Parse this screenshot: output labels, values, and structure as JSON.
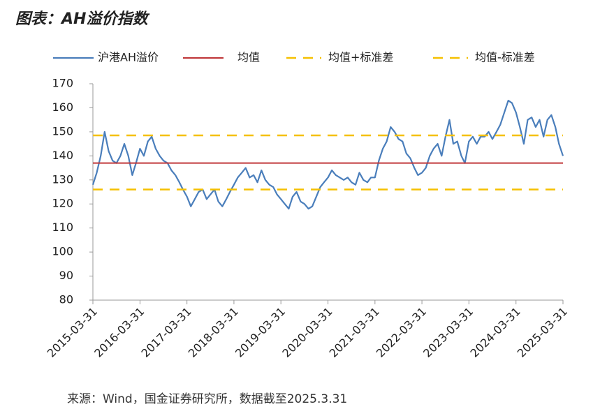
{
  "chart_data": {
    "type": "line",
    "title": "图表：AH溢价指数",
    "source": "来源：Wind，国金证券研究所，数据截至2025.3.31",
    "x": [
      "2015-03-31",
      "2015-04-30",
      "2015-05-31",
      "2015-06-30",
      "2015-07-31",
      "2015-08-31",
      "2015-09-30",
      "2015-10-31",
      "2015-11-30",
      "2015-12-31",
      "2016-01-31",
      "2016-02-29",
      "2016-03-31",
      "2016-04-30",
      "2016-05-31",
      "2016-06-30",
      "2016-07-31",
      "2016-08-31",
      "2016-09-30",
      "2016-10-31",
      "2016-11-30",
      "2016-12-31",
      "2017-01-31",
      "2017-02-28",
      "2017-03-31",
      "2017-04-30",
      "2017-05-31",
      "2017-06-30",
      "2017-07-31",
      "2017-08-31",
      "2017-09-30",
      "2017-10-31",
      "2017-11-30",
      "2017-12-31",
      "2018-01-31",
      "2018-02-28",
      "2018-03-31",
      "2018-04-30",
      "2018-05-31",
      "2018-06-30",
      "2018-07-31",
      "2018-08-31",
      "2018-09-30",
      "2018-10-31",
      "2018-11-30",
      "2018-12-31",
      "2019-01-31",
      "2019-02-28",
      "2019-03-31",
      "2019-04-30",
      "2019-05-31",
      "2019-06-30",
      "2019-07-31",
      "2019-08-31",
      "2019-09-30",
      "2019-10-31",
      "2019-11-30",
      "2019-12-31",
      "2020-01-31",
      "2020-02-29",
      "2020-03-31",
      "2020-04-30",
      "2020-05-31",
      "2020-06-30",
      "2020-07-31",
      "2020-08-31",
      "2020-09-30",
      "2020-10-31",
      "2020-11-30",
      "2020-12-31",
      "2021-01-31",
      "2021-02-28",
      "2021-03-31",
      "2021-04-30",
      "2021-05-31",
      "2021-06-30",
      "2021-07-31",
      "2021-08-31",
      "2021-09-30",
      "2021-10-31",
      "2021-11-30",
      "2021-12-31",
      "2022-01-31",
      "2022-02-28",
      "2022-03-31",
      "2022-04-30",
      "2022-05-31",
      "2022-06-30",
      "2022-07-31",
      "2022-08-31",
      "2022-09-30",
      "2022-10-31",
      "2022-11-30",
      "2022-12-31",
      "2023-01-31",
      "2023-02-28",
      "2023-03-31",
      "2023-04-30",
      "2023-05-31",
      "2023-06-30",
      "2023-07-31",
      "2023-08-31",
      "2023-09-30",
      "2023-10-31",
      "2023-11-30",
      "2023-12-31",
      "2024-01-31",
      "2024-02-29",
      "2024-03-31",
      "2024-04-30",
      "2024-05-31",
      "2024-06-30",
      "2024-07-31",
      "2024-08-31",
      "2024-09-30",
      "2024-10-31",
      "2024-11-30",
      "2024-12-31",
      "2025-01-31",
      "2025-02-28",
      "2025-03-31"
    ],
    "series": [
      {
        "name": "沪港AH溢价",
        "color": "#4a7ebb",
        "style": "solid",
        "values": [
          128,
          133,
          140,
          150,
          142,
          138,
          137,
          140,
          145,
          140,
          132,
          137,
          143,
          140,
          146,
          148,
          143,
          140,
          138,
          137,
          134,
          132,
          129,
          126,
          123,
          119,
          122,
          125,
          126,
          122,
          124,
          126,
          121,
          119,
          122,
          125,
          128,
          131,
          133,
          135,
          131,
          132,
          129,
          134,
          130,
          128,
          127,
          124,
          122,
          120,
          118,
          123,
          125,
          121,
          120,
          118,
          119,
          123,
          127,
          129,
          131,
          134,
          132,
          131,
          130,
          131,
          129,
          128,
          133,
          130,
          129,
          131,
          131,
          138,
          143,
          146,
          152,
          150,
          147,
          146,
          141,
          139,
          135,
          132,
          133,
          135,
          140,
          143,
          145,
          140,
          148,
          155,
          145,
          146,
          140,
          137,
          146,
          148,
          145,
          148,
          148,
          150,
          147,
          150,
          153,
          158,
          163,
          162,
          158,
          152,
          145,
          155,
          156,
          152,
          155,
          148,
          155,
          157,
          152,
          145,
          140
        ]
      },
      {
        "name": "均值",
        "color": "#c0393b",
        "style": "solid",
        "value": 137
      },
      {
        "name": "均值+标准差",
        "color": "#f5c000",
        "style": "dashed",
        "value": 148.5
      },
      {
        "name": "均值-标准差",
        "color": "#f5c000",
        "style": "dashed",
        "value": 126
      }
    ],
    "xlim": [
      "2015-03-31",
      "2025-03-31"
    ],
    "xticks": [
      "2015-03-31",
      "2016-03-31",
      "2017-03-31",
      "2018-03-31",
      "2019-03-31",
      "2020-03-31",
      "2021-03-31",
      "2022-03-31",
      "2023-03-31",
      "2024-03-31",
      "2025-03-31"
    ],
    "ylim": [
      80,
      170
    ],
    "yticks": [
      80,
      90,
      100,
      110,
      120,
      130,
      140,
      150,
      160,
      170
    ],
    "grid": false
  }
}
